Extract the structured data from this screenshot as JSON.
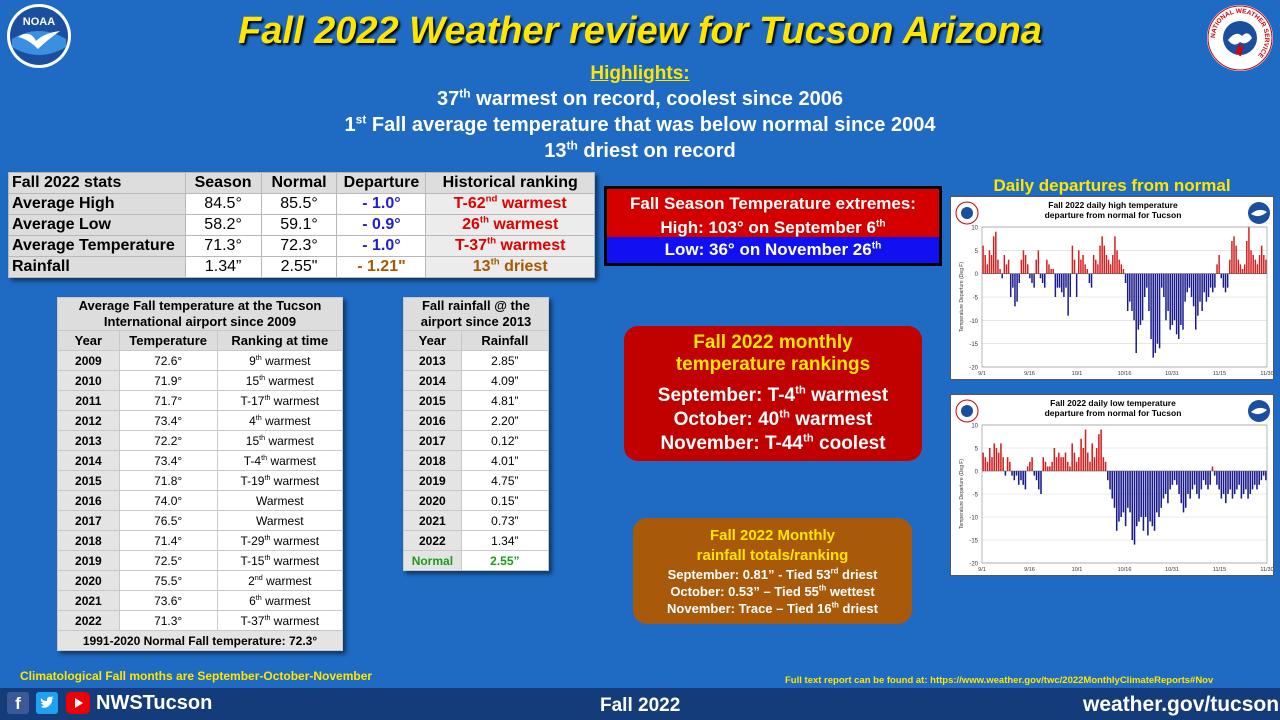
{
  "header": {
    "title": "Fall 2022 Weather review for Tucson Arizona",
    "noaa_logo_text": "NOAA",
    "nws_logo_text": "NATIONAL WEATHER SERVICE"
  },
  "highlights": {
    "heading": "Highlights:",
    "line1": {
      "pre": "37",
      "sup": "th",
      "post": " warmest on record, coolest since 2006"
    },
    "line2": {
      "pre": "1",
      "sup": "st",
      "post": " Fall average temperature that was below normal since 2004"
    },
    "line3": {
      "pre": "13",
      "sup": "th",
      "post": " driest on record"
    }
  },
  "stats": {
    "headers": [
      "Fall 2022 stats",
      "Season",
      "Normal",
      "Departure",
      "Historical ranking"
    ],
    "rows": [
      {
        "label": "Average High",
        "season": "84.5°",
        "normal": "85.5°",
        "departure": "- 1.0°",
        "rank_pre": "T-62",
        "rank_sup": "nd",
        "rank_post": " warmest"
      },
      {
        "label": "Average Low",
        "season": "58.2°",
        "normal": "59.1°",
        "departure": "- 0.9°",
        "rank_pre": "26",
        "rank_sup": "th",
        "rank_post": " warmest"
      },
      {
        "label": "Average Temperature",
        "season": "71.3°",
        "normal": "72.3°",
        "departure": "- 1.0°",
        "rank_pre": "T-37",
        "rank_sup": "th",
        "rank_post": " warmest"
      },
      {
        "label": "Rainfall",
        "season": "1.34”",
        "normal": "2.55\"",
        "departure": "- 1.21\"",
        "rank_pre": "13",
        "rank_sup": "th",
        "rank_post": " driest"
      }
    ]
  },
  "temp_table": {
    "caption": "Average Fall temperature at the Tucson International airport since 2009",
    "headers": [
      "Year",
      "Temperature",
      "Ranking at time"
    ],
    "rows": [
      {
        "year": "2009",
        "temp": "72.6°",
        "pre": "9",
        "sup": "th",
        "post": " warmest"
      },
      {
        "year": "2010",
        "temp": "71.9°",
        "pre": "15",
        "sup": "th",
        "post": " warmest"
      },
      {
        "year": "2011",
        "temp": "71.7°",
        "pre": "T-17",
        "sup": "th",
        "post": " warmest"
      },
      {
        "year": "2012",
        "temp": "73.4°",
        "pre": "4",
        "sup": "th",
        "post": " warmest"
      },
      {
        "year": "2013",
        "temp": "72.2°",
        "pre": "15",
        "sup": "th",
        "post": " warmest"
      },
      {
        "year": "2014",
        "temp": "73.4°",
        "pre": "T-4",
        "sup": "th",
        "post": " warmest"
      },
      {
        "year": "2015",
        "temp": "71.8°",
        "pre": "T-19",
        "sup": "th",
        "post": " warmest"
      },
      {
        "year": "2016",
        "temp": "74.0°",
        "pre": "Warmest",
        "sup": "",
        "post": ""
      },
      {
        "year": "2017",
        "temp": "76.5°",
        "pre": "Warmest",
        "sup": "",
        "post": ""
      },
      {
        "year": "2018",
        "temp": "71.4°",
        "pre": "T-29",
        "sup": "th",
        "post": " warmest"
      },
      {
        "year": "2019",
        "temp": "72.5°",
        "pre": "T-15",
        "sup": "th",
        "post": " warmest"
      },
      {
        "year": "2020",
        "temp": "75.5°",
        "pre": "2",
        "sup": "nd",
        "post": " warmest"
      },
      {
        "year": "2021",
        "temp": "73.6°",
        "pre": "6",
        "sup": "th",
        "post": " warmest"
      },
      {
        "year": "2022",
        "temp": "71.3°",
        "pre": "T-37",
        "sup": "th",
        "post": " warmest"
      }
    ],
    "footer": "1991-2020  Normal Fall temperature: 72.3°"
  },
  "rain_table": {
    "caption": "Fall rainfall @ the airport since 2013",
    "headers": [
      "Year",
      "Rainfall"
    ],
    "rows": [
      {
        "year": "2013",
        "val": "2.85”"
      },
      {
        "year": "2014",
        "val": "4.09”"
      },
      {
        "year": "2015",
        "val": "4.81”"
      },
      {
        "year": "2016",
        "val": "2.20”"
      },
      {
        "year": "2017",
        "val": "0.12”"
      },
      {
        "year": "2018",
        "val": "4.01”"
      },
      {
        "year": "2019",
        "val": "4.75”"
      },
      {
        "year": "2020",
        "val": "0.15”"
      },
      {
        "year": "2021",
        "val": "0.73”"
      },
      {
        "year": "2022",
        "val": "1.34”"
      }
    ],
    "normal_label": "Normal",
    "normal_val": "2.55”"
  },
  "extremes": {
    "title": "Fall Season Temperature extremes:",
    "high_pre": "High: 103° on September 6",
    "high_sup": "th",
    "low_pre": "Low: 36° on November 26",
    "low_sup": "th"
  },
  "monthly_temp": {
    "title1": "Fall 2022 monthly",
    "title2": "temperature rankings",
    "lines": [
      {
        "pre": "September:  T-4",
        "sup": "th",
        "post": " warmest"
      },
      {
        "pre": "October: 40",
        "sup": "th",
        "post": " warmest"
      },
      {
        "pre": "November:  T-44",
        "sup": "th",
        "post": " coolest"
      }
    ]
  },
  "monthly_rain": {
    "title1": "Fall  2022  Monthly",
    "title2": "rainfall  totals/ranking",
    "lines": [
      {
        "pre": "September: 0.81” - Tied 53",
        "sup": "rd",
        "post": " driest"
      },
      {
        "pre": "October: 0.53” – Tied 55",
        "sup": "th",
        "post": " wettest"
      },
      {
        "pre": "November: Trace – Tied 16",
        "sup": "th",
        "post": " driest"
      }
    ]
  },
  "charts_heading": "Daily departures from normal",
  "chart_data": [
    {
      "type": "bar",
      "title": "Fall 2022 daily high temperature departure from normal for Tucson",
      "ylabel": "Temperature Departure (Deg F)",
      "ylim": [
        -20,
        10
      ],
      "yticks": [
        -20,
        -15,
        -10,
        -5,
        0,
        5,
        10
      ],
      "xticks": [
        "9/1",
        "9/16",
        "10/1",
        "10/16",
        "10/31",
        "11/15",
        "11/30"
      ],
      "values": [
        6,
        4,
        2,
        5,
        4,
        8,
        9,
        3,
        1,
        -1,
        4,
        2,
        3,
        -5,
        -3,
        -7,
        -6,
        -2,
        3,
        5,
        4,
        2,
        -1,
        -2,
        -3,
        3,
        5,
        -1,
        -2,
        -3,
        3,
        2,
        1,
        1,
        -5,
        -3,
        -3,
        -4,
        -5,
        -3,
        -9,
        -5,
        6,
        3,
        -5,
        5,
        3,
        4,
        2,
        1,
        -2,
        -3,
        4,
        3,
        2,
        6,
        8,
        6,
        4,
        3,
        2,
        4,
        8,
        5,
        3,
        2,
        1,
        -2,
        -8,
        -6,
        -8,
        -10,
        -17,
        -12,
        -11,
        -10,
        -5,
        -3,
        -8,
        -14,
        -18,
        -17,
        -15,
        -16,
        -3,
        -5,
        -10,
        -8,
        -12,
        -11,
        -10,
        -13,
        -14,
        -11,
        -12,
        -6,
        -4,
        -3,
        -5,
        -7,
        -12,
        -9,
        -6,
        -8,
        -4,
        -6,
        -5,
        -3,
        -4,
        -3,
        2,
        4,
        -1,
        -3,
        -4,
        -3,
        3,
        7,
        8,
        6,
        3,
        2,
        1,
        2,
        7,
        10,
        5,
        4,
        3,
        2,
        4,
        6,
        4,
        3
      ]
    },
    {
      "type": "bar",
      "title": "Fall 2022 daily low temperature departure from normal for Tucson",
      "ylabel": "Temperature Departure (Deg F)",
      "ylim": [
        -20,
        10
      ],
      "yticks": [
        -20,
        -15,
        -10,
        -5,
        0,
        5,
        10
      ],
      "xticks": [
        "9/1",
        "9/16",
        "10/1",
        "10/16",
        "10/31",
        "11/15",
        "11/30"
      ],
      "values": [
        4,
        3,
        2,
        5,
        3,
        6,
        5,
        4,
        6,
        3,
        -1,
        3,
        2,
        -1,
        -2,
        -1,
        -3,
        -2,
        -3,
        -4,
        1,
        2,
        3,
        -1,
        -2,
        -4,
        -5,
        3,
        2,
        1,
        1,
        2,
        5,
        3,
        4,
        3,
        3,
        4,
        2,
        1,
        6,
        4,
        2,
        3,
        7,
        5,
        9,
        4,
        2,
        6,
        3,
        5,
        8,
        9,
        3,
        2,
        -2,
        -4,
        -6,
        -8,
        -13,
        -11,
        -10,
        -9,
        -12,
        -8,
        -9,
        -15,
        -16,
        -12,
        -11,
        -10,
        -13,
        -10,
        -14,
        -11,
        -12,
        -13,
        -9,
        -10,
        -8,
        -6,
        -5,
        -7,
        -4,
        -3,
        -2,
        -3,
        -5,
        -7,
        -9,
        -8,
        -5,
        -6,
        -4,
        -3,
        -5,
        -6,
        -4,
        -2,
        -3,
        -4,
        -3,
        1,
        -1,
        -3,
        -4,
        -6,
        -5,
        -7,
        -5,
        -4,
        -6,
        -5,
        -4,
        -3,
        -6,
        -5,
        -4,
        -6,
        -5,
        -4,
        -3,
        -4,
        -3,
        -2,
        -1,
        -2
      ]
    }
  ],
  "footer": {
    "climo_note": "Climatological Fall months are September-October-November",
    "report_note": "Full text report can be found at: https://www.weather.gov/twc/2022MonthlyClimateReports#Nov",
    "social_handle": "NWSTucson",
    "season_label": "Fall 2022",
    "website": "weather.gov/tucson"
  }
}
